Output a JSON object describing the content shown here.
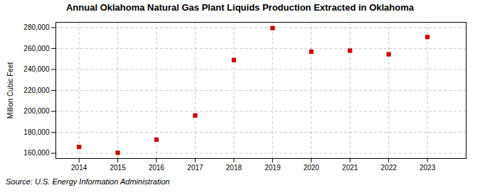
{
  "chart_data": {
    "type": "scatter",
    "title": "Annual Oklahoma Natural Gas Plant Liquids Production Extracted in Oklahoma",
    "ylabel": "Million Cubic Feet",
    "caption": "Source: U.S. Energy Information Administration",
    "x": [
      2014,
      2015,
      2016,
      2017,
      2018,
      2019,
      2020,
      2021,
      2022,
      2023
    ],
    "values": [
      166000,
      160500,
      173000,
      196000,
      249000,
      279500,
      257000,
      258000,
      254500,
      271000
    ],
    "color": "#cc0000",
    "marker": "square",
    "xlim": [
      2013.4,
      2024.0
    ],
    "xticks": [
      2014,
      2015,
      2016,
      2017,
      2018,
      2019,
      2020,
      2021,
      2022,
      2023
    ],
    "ylim": [
      155000,
      285000
    ],
    "yticks": [
      {
        "value": 160000,
        "label": "160,000"
      },
      {
        "value": 180000,
        "label": "180,000"
      },
      {
        "value": 200000,
        "label": "200,000"
      },
      {
        "value": 220000,
        "label": "220,000"
      },
      {
        "value": 240000,
        "label": "240,000"
      },
      {
        "value": 260000,
        "label": "260,000"
      },
      {
        "value": 280000,
        "label": "280,000"
      }
    ],
    "grid": true
  }
}
